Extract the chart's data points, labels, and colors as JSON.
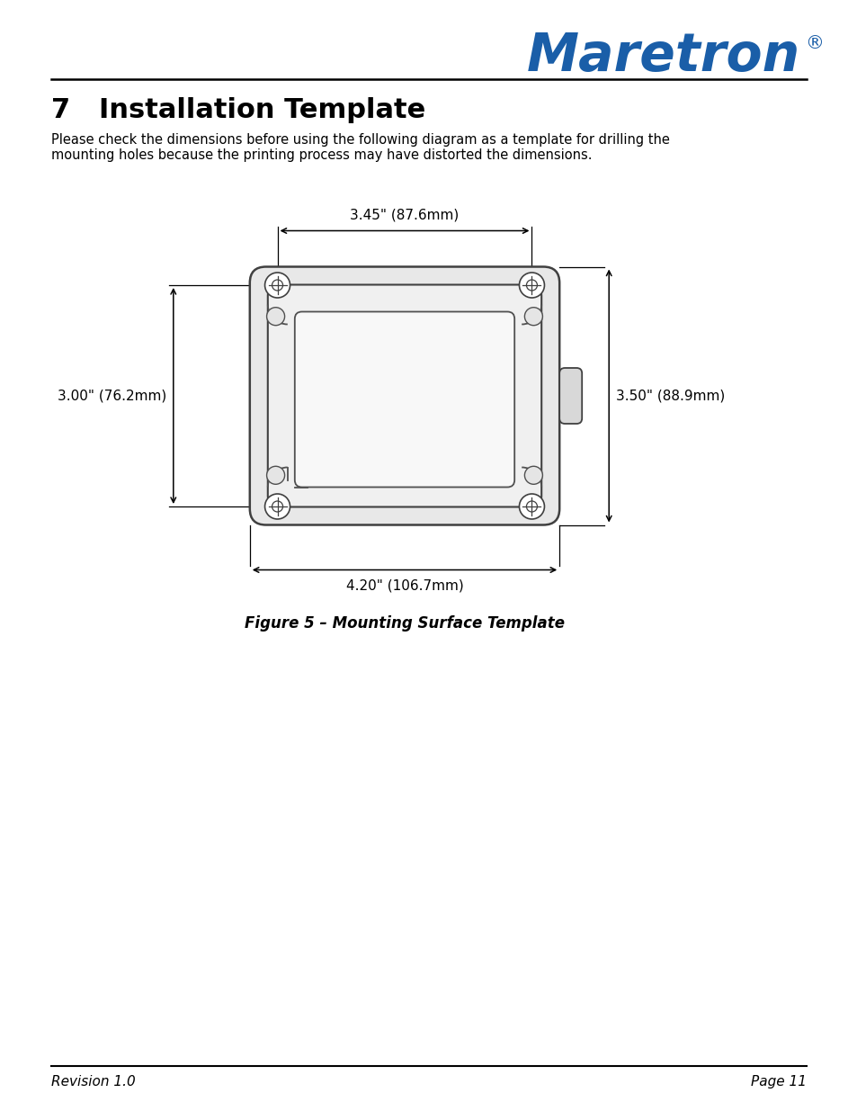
{
  "title": "7   Installation Template",
  "subtitle": "Please check the dimensions before using the following diagram as a template for drilling the\nmounting holes because the printing process may have distorted the dimensions.",
  "figure_caption": "Figure 5 – Mounting Surface Template",
  "revision": "Revision 1.0",
  "page": "Page 11",
  "logo_text": "Maretron",
  "logo_color": "#1a5ea8",
  "dim_top": "3.45\" (87.6mm)",
  "dim_bottom": "4.20\" (106.7mm)",
  "dim_left": "3.00\" (76.2mm)",
  "dim_right": "3.50\" (88.9mm)",
  "bg_color": "#ffffff",
  "line_color": "#000000",
  "body_fill": "#e8e8e8",
  "frame_fill": "#f0f0f0",
  "face_fill": "#f8f8f8"
}
